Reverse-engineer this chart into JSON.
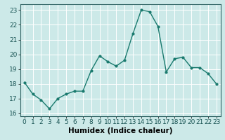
{
  "x": [
    0,
    1,
    2,
    3,
    4,
    5,
    6,
    7,
    8,
    9,
    10,
    11,
    12,
    13,
    14,
    15,
    16,
    17,
    18,
    19,
    20,
    21,
    22,
    23
  ],
  "y": [
    18.1,
    17.3,
    16.9,
    16.3,
    17.0,
    17.3,
    17.5,
    17.5,
    18.9,
    19.9,
    19.5,
    19.2,
    19.6,
    21.4,
    23.0,
    22.9,
    21.9,
    18.8,
    19.7,
    19.8,
    19.1,
    19.1,
    18.7,
    18.0
  ],
  "line_color": "#1a7a6e",
  "marker": "o",
  "marker_size": 2.0,
  "line_width": 1.0,
  "xlabel": "Humidex (Indice chaleur)",
  "xlim": [
    -0.5,
    23.5
  ],
  "ylim": [
    15.8,
    23.4
  ],
  "yticks": [
    16,
    17,
    18,
    19,
    20,
    21,
    22,
    23
  ],
  "xticks": [
    0,
    1,
    2,
    3,
    4,
    5,
    6,
    7,
    8,
    9,
    10,
    11,
    12,
    13,
    14,
    15,
    16,
    17,
    18,
    19,
    20,
    21,
    22,
    23
  ],
  "bg_color": "#cce9e8",
  "grid_color": "#ffffff",
  "xlabel_fontsize": 7.5,
  "tick_fontsize": 6.5
}
